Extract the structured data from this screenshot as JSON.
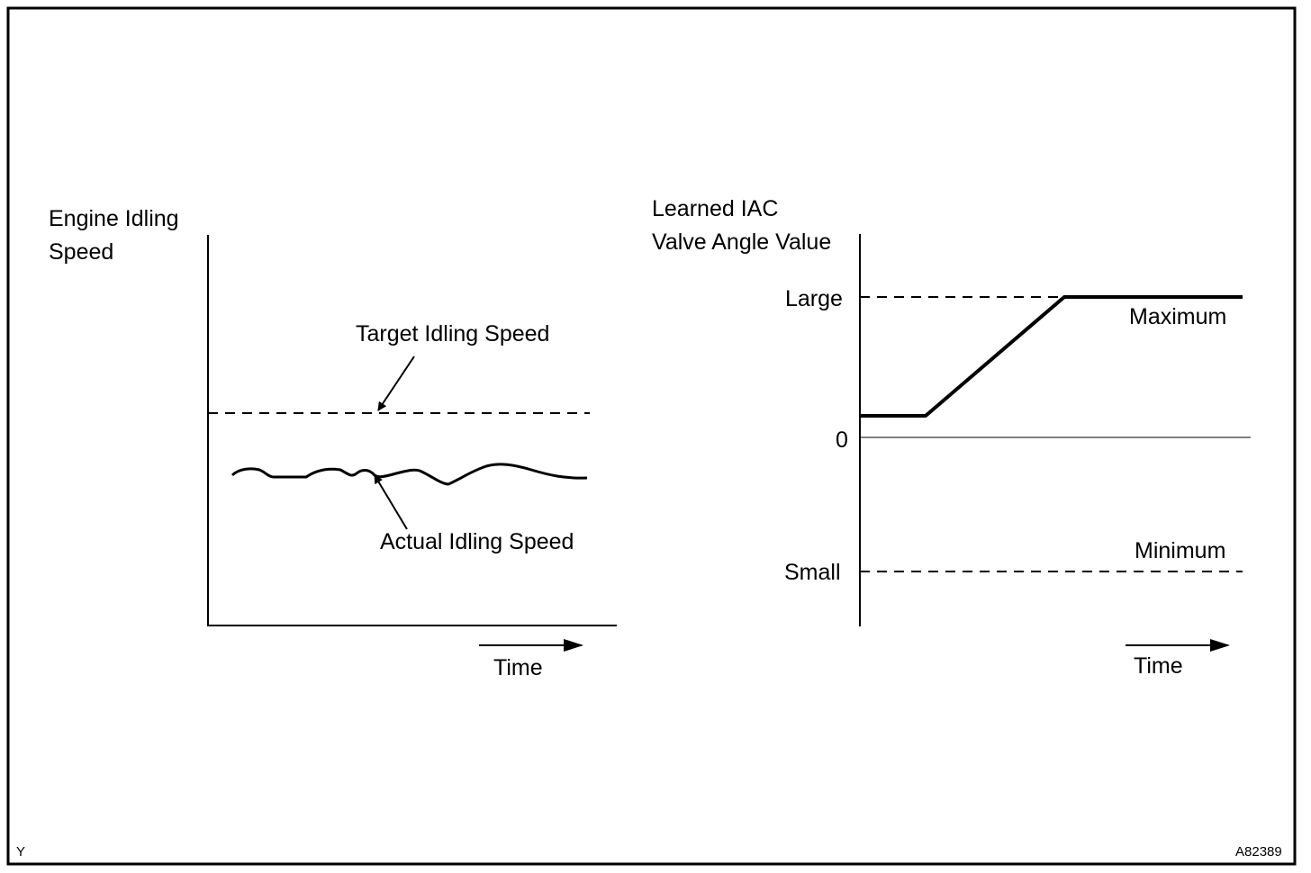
{
  "left_graph": {
    "y_label_line1": "Engine Idling",
    "y_label_line2": "Speed",
    "target_label": "Target Idling Speed",
    "actual_label": "Actual Idling Speed",
    "time_label": "Time"
  },
  "right_graph": {
    "y_label_line1": "Learned IAC",
    "y_label_line2": "Valve Angle Value",
    "large_label": "Large",
    "zero_label": "0",
    "small_label": "Small",
    "maximum_label": "Maximum",
    "minimum_label": "Minimum",
    "time_label": "Time"
  },
  "corner_letter": "Y",
  "figure_code": "A82389",
  "colors": {
    "line": "#000000",
    "background": "#ffffff"
  }
}
